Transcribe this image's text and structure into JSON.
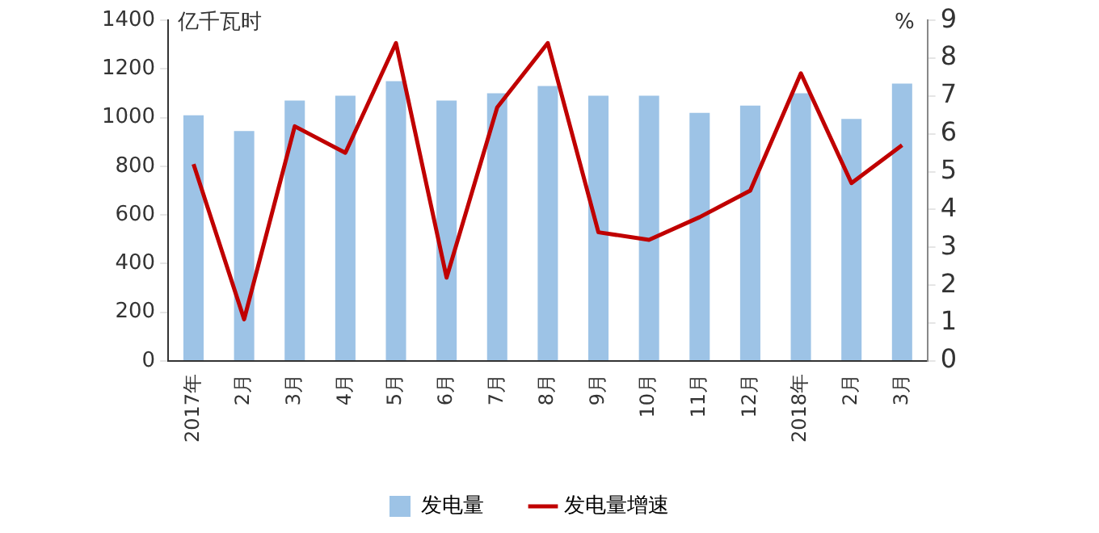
{
  "chart_data": {
    "type": "bar",
    "categories": [
      "2017年",
      "2月",
      "3月",
      "4月",
      "5月",
      "6月",
      "7月",
      "8月",
      "9月",
      "10月",
      "11月",
      "12月",
      "2018年",
      "2月",
      "3月"
    ],
    "ylabel": "亿千瓦时",
    "y2label": "%",
    "series": [
      {
        "name": "发电量",
        "color": "#9dc3e6",
        "values": [
          1010,
          945,
          1070,
          1090,
          1150,
          1070,
          1100,
          1130,
          1090,
          1090,
          1020,
          1050,
          1100,
          995,
          1140
        ]
      },
      {
        "name": "发电量增速",
        "type": "line",
        "axis": "y2",
        "color": "#c00000",
        "values": [
          5.2,
          1.1,
          6.2,
          5.5,
          8.4,
          2.2,
          6.7,
          8.4,
          3.4,
          3.2,
          3.8,
          4.5,
          7.6,
          4.7,
          5.7
        ]
      }
    ],
    "ylim": [
      0,
      1400
    ],
    "yticks": [
      0,
      200,
      400,
      600,
      800,
      1000,
      1200,
      1400
    ],
    "y2lim": [
      0,
      9
    ],
    "y2ticks": [
      0,
      1,
      2,
      3,
      4,
      5,
      6,
      7,
      8,
      9
    ],
    "grid": false,
    "legend": "bottom",
    "marker": "none"
  }
}
